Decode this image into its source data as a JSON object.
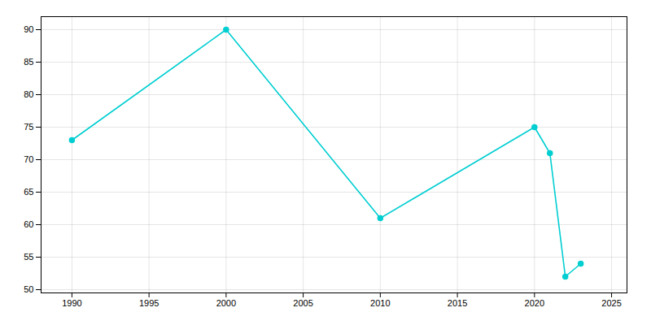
{
  "chart_data": {
    "type": "line",
    "x": [
      1990,
      2000,
      2010,
      2020,
      2021,
      2022,
      2023
    ],
    "values": [
      73,
      90,
      61,
      75,
      71,
      52,
      54
    ],
    "color": "#00CED1",
    "marker": "circle",
    "xlim": [
      1988,
      2026
    ],
    "ylim": [
      49.5,
      92
    ],
    "xticks": [
      1990,
      1995,
      2000,
      2005,
      2010,
      2015,
      2020,
      2025
    ],
    "yticks": [
      50,
      55,
      60,
      65,
      70,
      75,
      80,
      85,
      90
    ],
    "grid": true
  }
}
